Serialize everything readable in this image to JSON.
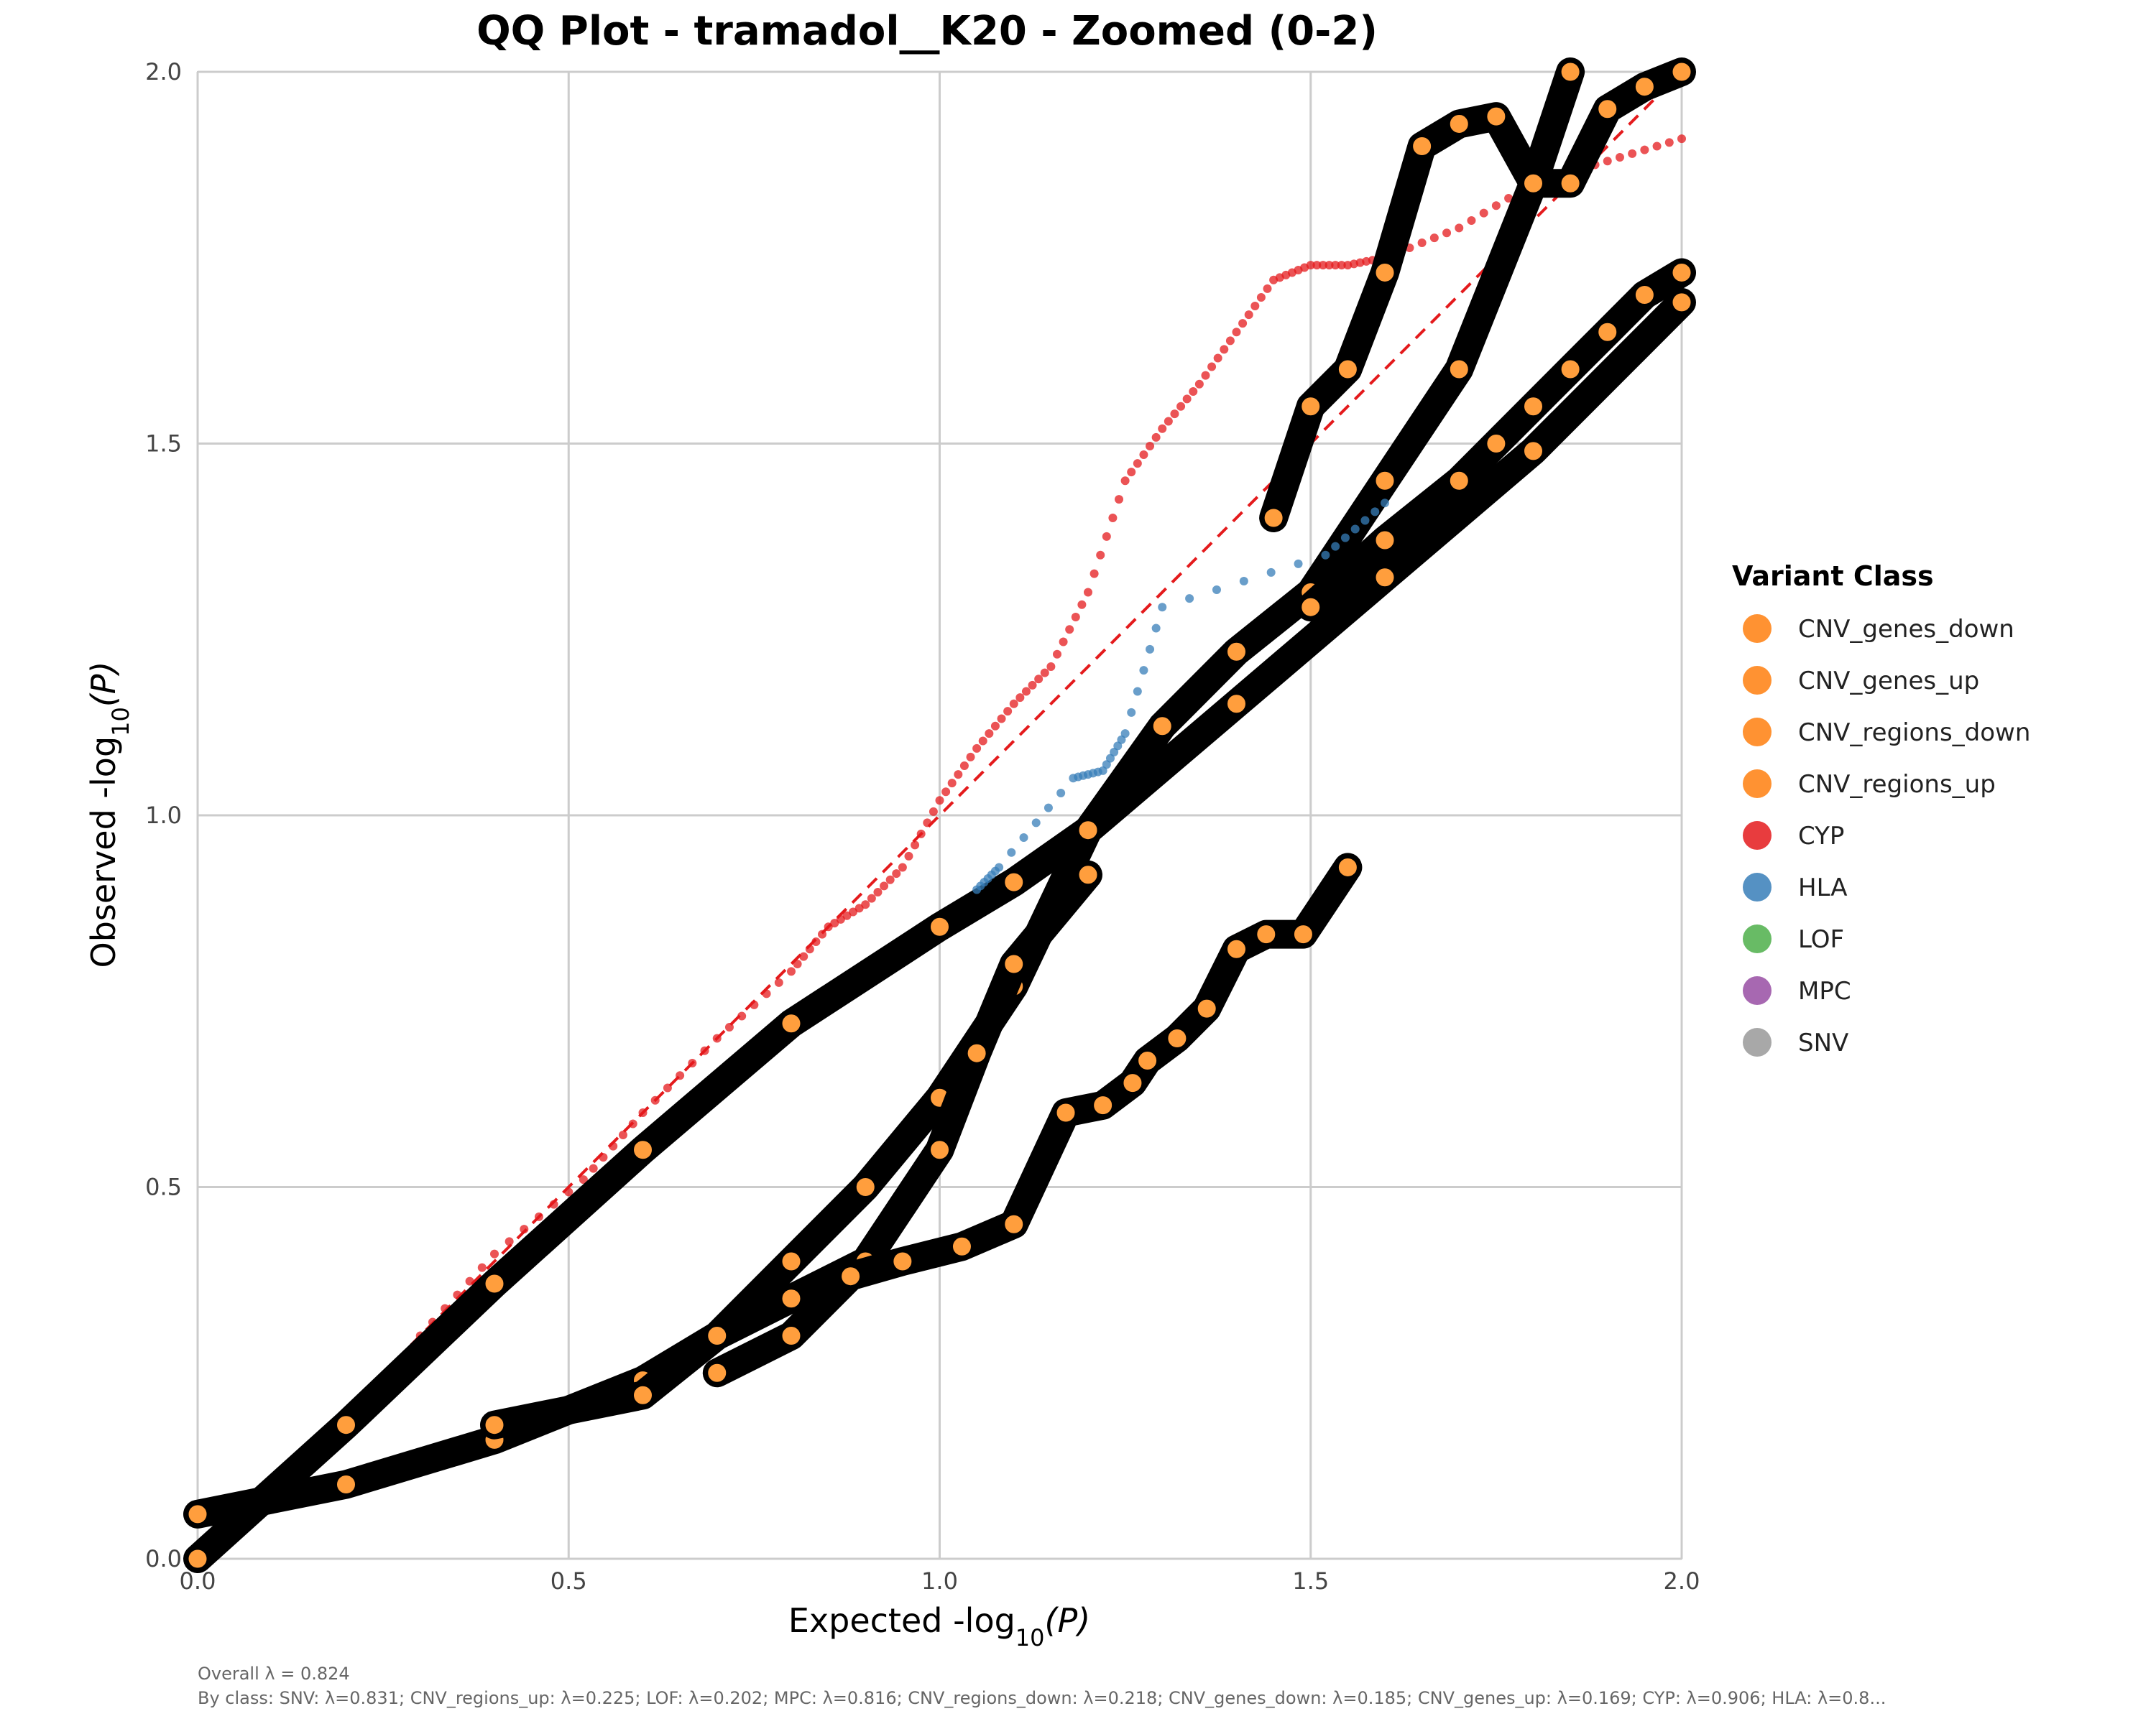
{
  "chart_data": {
    "type": "scatter",
    "title": "QQ Plot - tramadol__K20 - Zoomed (0-2)",
    "xlabel_main": "Expected -log",
    "xlabel_sub": "10",
    "xlabel_tail": "(P)",
    "ylabel_main": "Observed -log",
    "ylabel_sub": "10",
    "ylabel_tail": "(P)",
    "xlim": [
      0,
      2
    ],
    "ylim": [
      0,
      2
    ],
    "x_ticks": [
      "0.0",
      "0.5",
      "1.0",
      "1.5",
      "2.0"
    ],
    "y_ticks": [
      "0.0",
      "0.5",
      "1.0",
      "1.5",
      "2.0"
    ],
    "grid": true,
    "reference_line": {
      "x": [
        0,
        2
      ],
      "y": [
        0,
        2
      ],
      "color": "#e41a1c",
      "style": "dashed"
    },
    "legend": {
      "title": "Variant Class",
      "placement": "right",
      "entries": [
        {
          "name": "CNV_genes_down",
          "color": "#ff7f0e"
        },
        {
          "name": "CNV_genes_up",
          "color": "#ff7f0e"
        },
        {
          "name": "CNV_regions_down",
          "color": "#ff7f0e"
        },
        {
          "name": "CNV_regions_up",
          "color": "#ff7f0e"
        },
        {
          "name": "CYP",
          "color": "#e41a1c"
        },
        {
          "name": "HLA",
          "color": "#377eb8"
        },
        {
          "name": "LOF",
          "color": "#4daf4a"
        },
        {
          "name": "MPC",
          "color": "#984ea3"
        },
        {
          "name": "SNV",
          "color": "#999999"
        }
      ]
    },
    "series": [
      {
        "name": "CYP",
        "color": "#e41a1c",
        "marker": "small-dot",
        "points": [
          [
            0.3,
            0.3
          ],
          [
            0.4,
            0.41
          ],
          [
            0.52,
            0.51
          ],
          [
            0.6,
            0.6
          ],
          [
            0.7,
            0.7
          ],
          [
            0.8,
            0.79
          ],
          [
            0.85,
            0.85
          ],
          [
            0.9,
            0.88
          ],
          [
            0.95,
            0.93
          ],
          [
            1.0,
            1.02
          ],
          [
            1.05,
            1.09
          ],
          [
            1.1,
            1.15
          ],
          [
            1.15,
            1.2
          ],
          [
            1.2,
            1.3
          ],
          [
            1.25,
            1.45
          ],
          [
            1.3,
            1.52
          ],
          [
            1.35,
            1.58
          ],
          [
            1.4,
            1.65
          ],
          [
            1.45,
            1.72
          ],
          [
            1.5,
            1.74
          ],
          [
            1.55,
            1.74
          ],
          [
            1.6,
            1.75
          ],
          [
            1.7,
            1.79
          ],
          [
            1.8,
            1.85
          ],
          [
            1.9,
            1.88
          ],
          [
            2.0,
            1.91
          ]
        ]
      },
      {
        "name": "SNV",
        "color": "#000000",
        "marker": "ring",
        "points": [
          [
            0.0,
            0.0
          ],
          [
            0.2,
            0.18
          ],
          [
            0.4,
            0.37
          ],
          [
            0.6,
            0.55
          ],
          [
            0.8,
            0.72
          ],
          [
            1.0,
            0.85
          ],
          [
            1.1,
            0.91
          ],
          [
            1.2,
            0.98
          ],
          [
            1.4,
            1.15
          ],
          [
            1.6,
            1.32
          ],
          [
            1.8,
            1.49
          ],
          [
            2.0,
            1.69
          ]
        ]
      },
      {
        "name": "CNV_regions_up",
        "color": "#000000",
        "marker": "ring",
        "points": [
          [
            0.0,
            0.06
          ],
          [
            0.2,
            0.1
          ],
          [
            0.4,
            0.16
          ],
          [
            0.6,
            0.24
          ],
          [
            0.7,
            0.3
          ],
          [
            0.8,
            0.4
          ],
          [
            0.9,
            0.5
          ],
          [
            1.0,
            0.62
          ],
          [
            1.1,
            0.77
          ],
          [
            1.2,
            0.98
          ],
          [
            1.3,
            1.12
          ],
          [
            1.4,
            1.22
          ],
          [
            1.5,
            1.3
          ],
          [
            1.6,
            1.45
          ],
          [
            1.7,
            1.6
          ],
          [
            1.8,
            1.85
          ],
          [
            1.85,
            2.0
          ]
        ]
      },
      {
        "name": "CNV_regions_down",
        "color": "#000000",
        "marker": "ring",
        "points": [
          [
            0.4,
            0.18
          ],
          [
            0.6,
            0.22
          ],
          [
            0.7,
            0.3
          ],
          [
            0.8,
            0.35
          ],
          [
            0.9,
            0.4
          ],
          [
            1.0,
            0.55
          ],
          [
            1.05,
            0.68
          ],
          [
            1.1,
            0.8
          ],
          [
            1.2,
            0.92
          ]
        ]
      },
      {
        "name": "CNV_genes_down",
        "color": "#000000",
        "marker": "ring",
        "points": [
          [
            0.7,
            0.25
          ],
          [
            0.8,
            0.3
          ],
          [
            0.88,
            0.38
          ],
          [
            0.95,
            0.4
          ],
          [
            1.03,
            0.42
          ],
          [
            1.1,
            0.45
          ],
          [
            1.17,
            0.6
          ],
          [
            1.22,
            0.61
          ],
          [
            1.26,
            0.64
          ],
          [
            1.28,
            0.67
          ],
          [
            1.32,
            0.7
          ],
          [
            1.36,
            0.74
          ],
          [
            1.4,
            0.82
          ],
          [
            1.44,
            0.84
          ],
          [
            1.49,
            0.84
          ],
          [
            1.55,
            0.93
          ]
        ]
      },
      {
        "name": "MPC",
        "color": "#000000",
        "marker": "ring",
        "points": [
          [
            1.5,
            1.28
          ],
          [
            1.6,
            1.37
          ],
          [
            1.7,
            1.45
          ],
          [
            1.75,
            1.5
          ],
          [
            1.8,
            1.55
          ],
          [
            1.85,
            1.6
          ],
          [
            1.9,
            1.65
          ],
          [
            1.95,
            1.7
          ],
          [
            2.0,
            1.73
          ]
        ]
      },
      {
        "name": "CNV_genes_up",
        "color": "#000000",
        "marker": "ring",
        "points": [
          [
            1.45,
            1.4
          ],
          [
            1.5,
            1.55
          ],
          [
            1.55,
            1.6
          ],
          [
            1.6,
            1.73
          ],
          [
            1.65,
            1.9
          ],
          [
            1.7,
            1.93
          ],
          [
            1.75,
            1.94
          ],
          [
            1.8,
            1.85
          ],
          [
            1.85,
            1.85
          ],
          [
            1.9,
            1.95
          ],
          [
            1.95,
            1.98
          ],
          [
            2.0,
            2.0
          ]
        ]
      },
      {
        "name": "HLA",
        "color": "#377eb8",
        "marker": "small-dot",
        "points": [
          [
            1.05,
            0.9
          ],
          [
            1.08,
            0.93
          ],
          [
            1.18,
            1.05
          ],
          [
            1.22,
            1.06
          ],
          [
            1.25,
            1.11
          ],
          [
            1.3,
            1.28
          ],
          [
            1.52,
            1.35
          ],
          [
            1.6,
            1.42
          ]
        ]
      }
    ],
    "footnote_line1": "Overall λ = 0.824",
    "footnote_line2": "By class: SNV: λ=0.831; CNV_regions_up: λ=0.225; LOF: λ=0.202; MPC: λ=0.816; CNV_regions_down: λ=0.218; CNV_genes_down: λ=0.185; CNV_genes_up: λ=0.169; CYP: λ=0.906; HLA: λ=0.8..."
  }
}
